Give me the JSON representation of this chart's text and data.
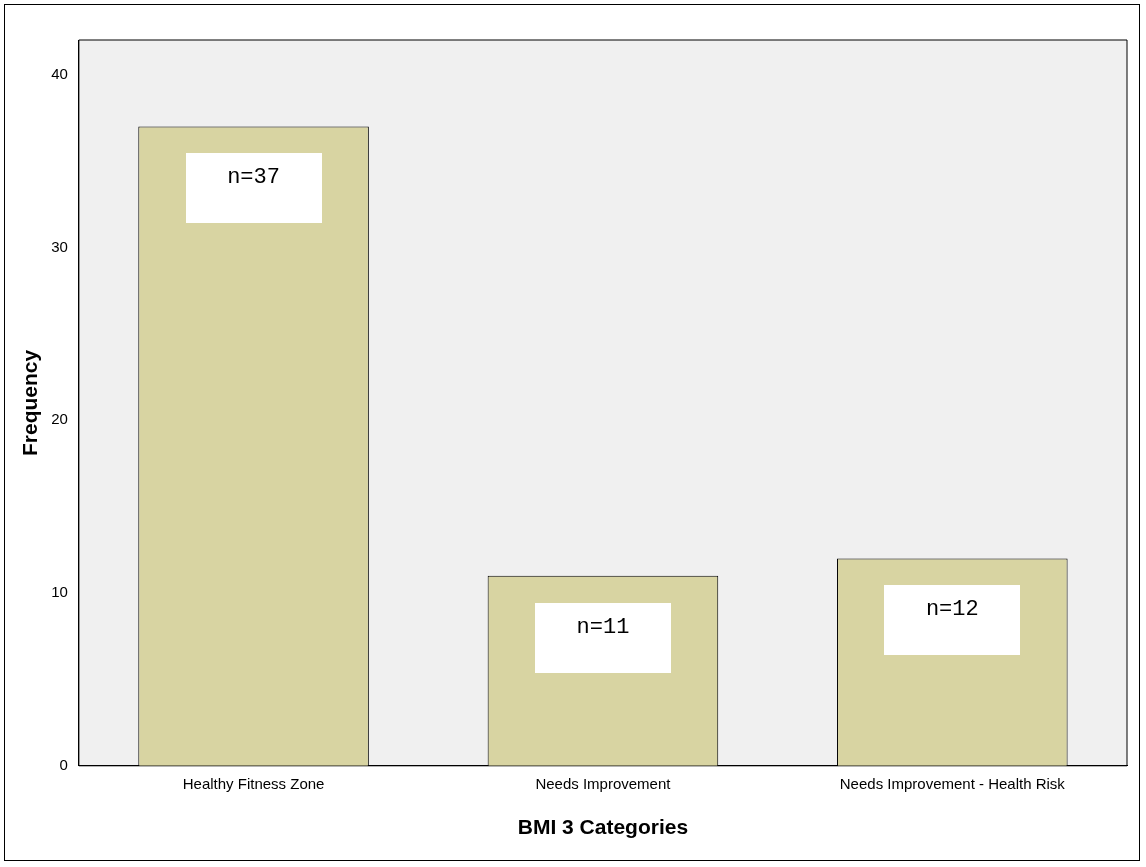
{
  "chart_data": {
    "type": "bar",
    "categories": [
      "Healthy Fitness Zone",
      "Needs Improvement",
      "Needs Improvement - Health Risk"
    ],
    "values": [
      37,
      11,
      12
    ],
    "value_labels": [
      "n=37",
      "n=11",
      "n=12"
    ],
    "color": "#d8d4a2",
    "xlabel": "BMI 3 Categories",
    "ylabel": "Frequency",
    "ylim": [
      0,
      42
    ],
    "yticks": [
      0,
      10,
      20,
      30,
      40
    ],
    "grid": false,
    "legend": false
  }
}
